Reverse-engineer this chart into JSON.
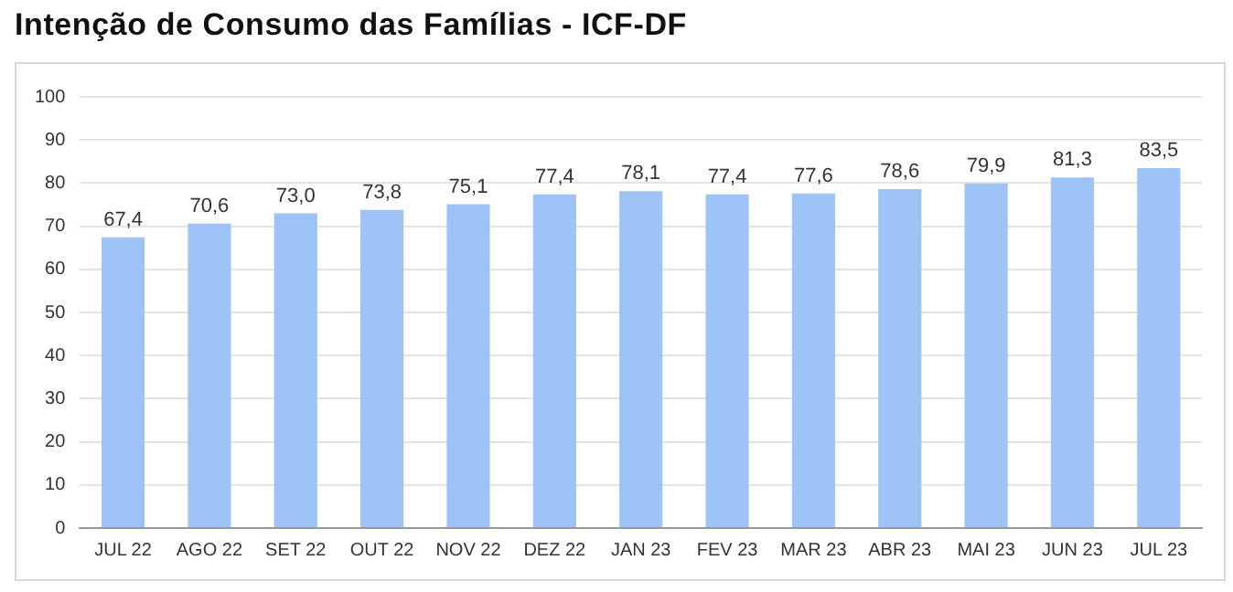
{
  "chart_data": {
    "type": "bar",
    "title": "Intenção de Consumo das Famílias - ICF-DF",
    "categories": [
      "JUL 22",
      "AGO 22",
      "SET 22",
      "OUT 22",
      "NOV 22",
      "DEZ 22",
      "JAN 23",
      "FEV 23",
      "MAR 23",
      "ABR 23",
      "MAI 23",
      "JUN 23",
      "JUL 23"
    ],
    "values": [
      67.4,
      70.6,
      73.0,
      73.8,
      75.1,
      77.4,
      78.1,
      77.4,
      77.6,
      78.6,
      79.9,
      81.3,
      83.5
    ],
    "value_labels": [
      "67,4",
      "70,6",
      "73,0",
      "73,8",
      "75,1",
      "77,4",
      "78,1",
      "77,4",
      "77,6",
      "78,6",
      "79,9",
      "81,3",
      "83,5"
    ],
    "color": "#9dc3f7",
    "ylim": [
      0,
      100
    ],
    "yticks": [
      0,
      10,
      20,
      30,
      40,
      50,
      60,
      70,
      80,
      90,
      100
    ],
    "grid": "y",
    "legend": false
  }
}
